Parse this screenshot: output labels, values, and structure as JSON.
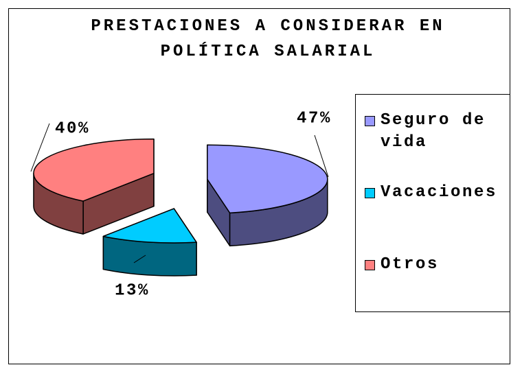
{
  "chart_data": {
    "type": "pie",
    "title": "PRESTACIONES A CONSIDERAR EN POLÍTICA SALARIAL",
    "categories": [
      "Seguro de vida",
      "Vacaciones",
      "Otros"
    ],
    "values": [
      47,
      13,
      40
    ],
    "value_labels": [
      "47%",
      "13%",
      "40%"
    ],
    "colors": [
      "#9999ff",
      "#00ccff",
      "#ff8080"
    ],
    "legend": "right"
  }
}
